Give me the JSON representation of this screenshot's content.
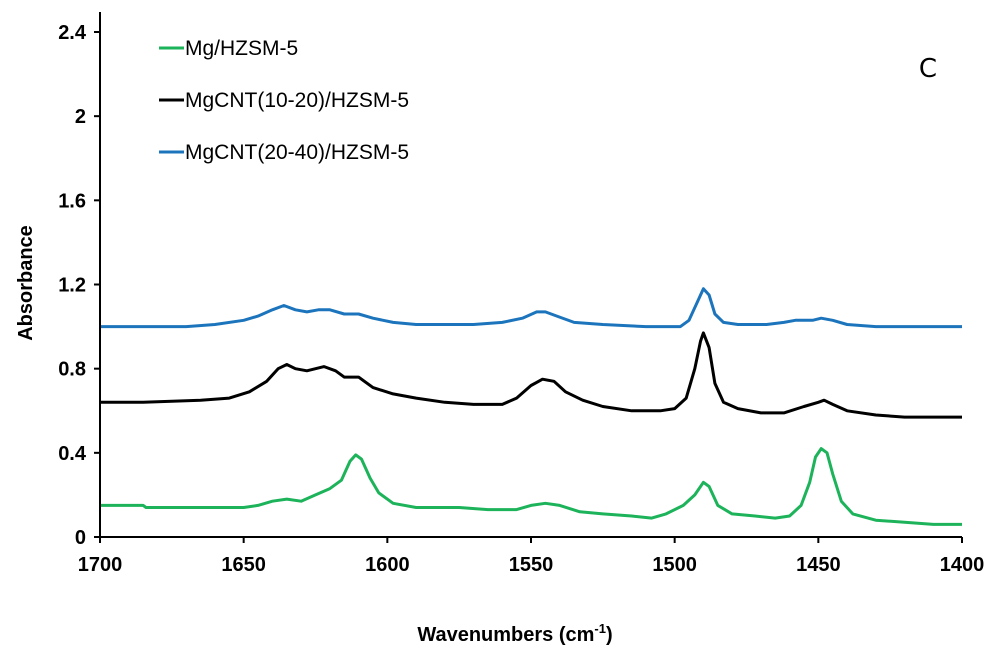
{
  "chart_data": {
    "type": "line",
    "xlabel": "Wavenumbers (cm",
    "xlabel_sup": "-1",
    "xlabel_end": ")",
    "ylabel": "Absorbance",
    "annotation": "C",
    "xlim": [
      1700,
      1400
    ],
    "ylim": [
      0,
      2.4
    ],
    "x_reversed": true,
    "x_ticks": [
      1700,
      1650,
      1600,
      1550,
      1500,
      1450,
      1400
    ],
    "y_ticks": [
      0,
      0.4,
      0.8,
      1.2,
      1.6,
      2,
      2.4
    ],
    "x_tick_labels": [
      "1700",
      "1650",
      "1600",
      "1550",
      "1500",
      "1450",
      "1400"
    ],
    "y_tick_labels": [
      "0",
      "0.4",
      "0.8",
      "1.2",
      "1.6",
      "2",
      "2.4"
    ],
    "grid": false,
    "legend_position": "top-left",
    "series": [
      {
        "name": "Mg/HZSM-5",
        "color": "#1db35a",
        "points": [
          [
            1700,
            0.15
          ],
          [
            1685,
            0.15
          ],
          [
            1684,
            0.14
          ],
          [
            1665,
            0.14
          ],
          [
            1650,
            0.14
          ],
          [
            1645,
            0.15
          ],
          [
            1640,
            0.17
          ],
          [
            1635,
            0.18
          ],
          [
            1630,
            0.17
          ],
          [
            1625,
            0.2
          ],
          [
            1620,
            0.23
          ],
          [
            1616,
            0.27
          ],
          [
            1613,
            0.36
          ],
          [
            1611,
            0.39
          ],
          [
            1609,
            0.37
          ],
          [
            1606,
            0.28
          ],
          [
            1603,
            0.21
          ],
          [
            1598,
            0.16
          ],
          [
            1590,
            0.14
          ],
          [
            1575,
            0.14
          ],
          [
            1565,
            0.13
          ],
          [
            1555,
            0.13
          ],
          [
            1550,
            0.15
          ],
          [
            1545,
            0.16
          ],
          [
            1540,
            0.15
          ],
          [
            1533,
            0.12
          ],
          [
            1525,
            0.11
          ],
          [
            1515,
            0.1
          ],
          [
            1508,
            0.09
          ],
          [
            1503,
            0.11
          ],
          [
            1497,
            0.15
          ],
          [
            1493,
            0.2
          ],
          [
            1490,
            0.26
          ],
          [
            1488,
            0.24
          ],
          [
            1485,
            0.15
          ],
          [
            1480,
            0.11
          ],
          [
            1472,
            0.1
          ],
          [
            1465,
            0.09
          ],
          [
            1460,
            0.1
          ],
          [
            1456,
            0.15
          ],
          [
            1453,
            0.26
          ],
          [
            1451,
            0.38
          ],
          [
            1449,
            0.42
          ],
          [
            1447,
            0.4
          ],
          [
            1445,
            0.3
          ],
          [
            1442,
            0.17
          ],
          [
            1438,
            0.11
          ],
          [
            1430,
            0.08
          ],
          [
            1420,
            0.07
          ],
          [
            1410,
            0.06
          ],
          [
            1400,
            0.06
          ]
        ]
      },
      {
        "name": "MgCNT(10-20)/HZSM-5",
        "color": "#000000",
        "points": [
          [
            1700,
            0.64
          ],
          [
            1685,
            0.64
          ],
          [
            1665,
            0.65
          ],
          [
            1655,
            0.66
          ],
          [
            1648,
            0.69
          ],
          [
            1642,
            0.74
          ],
          [
            1638,
            0.8
          ],
          [
            1635,
            0.82
          ],
          [
            1632,
            0.8
          ],
          [
            1628,
            0.79
          ],
          [
            1625,
            0.8
          ],
          [
            1622,
            0.81
          ],
          [
            1618,
            0.79
          ],
          [
            1615,
            0.76
          ],
          [
            1610,
            0.76
          ],
          [
            1605,
            0.71
          ],
          [
            1598,
            0.68
          ],
          [
            1590,
            0.66
          ],
          [
            1580,
            0.64
          ],
          [
            1570,
            0.63
          ],
          [
            1560,
            0.63
          ],
          [
            1555,
            0.66
          ],
          [
            1550,
            0.72
          ],
          [
            1546,
            0.75
          ],
          [
            1542,
            0.74
          ],
          [
            1538,
            0.69
          ],
          [
            1532,
            0.65
          ],
          [
            1525,
            0.62
          ],
          [
            1515,
            0.6
          ],
          [
            1505,
            0.6
          ],
          [
            1500,
            0.61
          ],
          [
            1496,
            0.66
          ],
          [
            1493,
            0.8
          ],
          [
            1491,
            0.93
          ],
          [
            1490,
            0.97
          ],
          [
            1488,
            0.9
          ],
          [
            1486,
            0.73
          ],
          [
            1483,
            0.64
          ],
          [
            1478,
            0.61
          ],
          [
            1470,
            0.59
          ],
          [
            1462,
            0.59
          ],
          [
            1455,
            0.62
          ],
          [
            1450,
            0.64
          ],
          [
            1448,
            0.65
          ],
          [
            1445,
            0.63
          ],
          [
            1440,
            0.6
          ],
          [
            1430,
            0.58
          ],
          [
            1420,
            0.57
          ],
          [
            1410,
            0.57
          ],
          [
            1400,
            0.57
          ]
        ]
      },
      {
        "name": "MgCNT(20-40)/HZSM-5",
        "color": "#1c75bc",
        "points": [
          [
            1700,
            1.0
          ],
          [
            1670,
            1.0
          ],
          [
            1660,
            1.01
          ],
          [
            1650,
            1.03
          ],
          [
            1645,
            1.05
          ],
          [
            1640,
            1.08
          ],
          [
            1636,
            1.1
          ],
          [
            1632,
            1.08
          ],
          [
            1628,
            1.07
          ],
          [
            1624,
            1.08
          ],
          [
            1620,
            1.08
          ],
          [
            1615,
            1.06
          ],
          [
            1610,
            1.06
          ],
          [
            1605,
            1.04
          ],
          [
            1598,
            1.02
          ],
          [
            1590,
            1.01
          ],
          [
            1570,
            1.01
          ],
          [
            1560,
            1.02
          ],
          [
            1553,
            1.04
          ],
          [
            1548,
            1.07
          ],
          [
            1545,
            1.07
          ],
          [
            1541,
            1.05
          ],
          [
            1535,
            1.02
          ],
          [
            1525,
            1.01
          ],
          [
            1510,
            1.0
          ],
          [
            1498,
            1.0
          ],
          [
            1495,
            1.03
          ],
          [
            1492,
            1.12
          ],
          [
            1490,
            1.18
          ],
          [
            1488,
            1.15
          ],
          [
            1486,
            1.06
          ],
          [
            1483,
            1.02
          ],
          [
            1478,
            1.01
          ],
          [
            1468,
            1.01
          ],
          [
            1462,
            1.02
          ],
          [
            1458,
            1.03
          ],
          [
            1452,
            1.03
          ],
          [
            1449,
            1.04
          ],
          [
            1445,
            1.03
          ],
          [
            1440,
            1.01
          ],
          [
            1430,
            1.0
          ],
          [
            1410,
            1.0
          ],
          [
            1400,
            1.0
          ]
        ]
      }
    ]
  }
}
